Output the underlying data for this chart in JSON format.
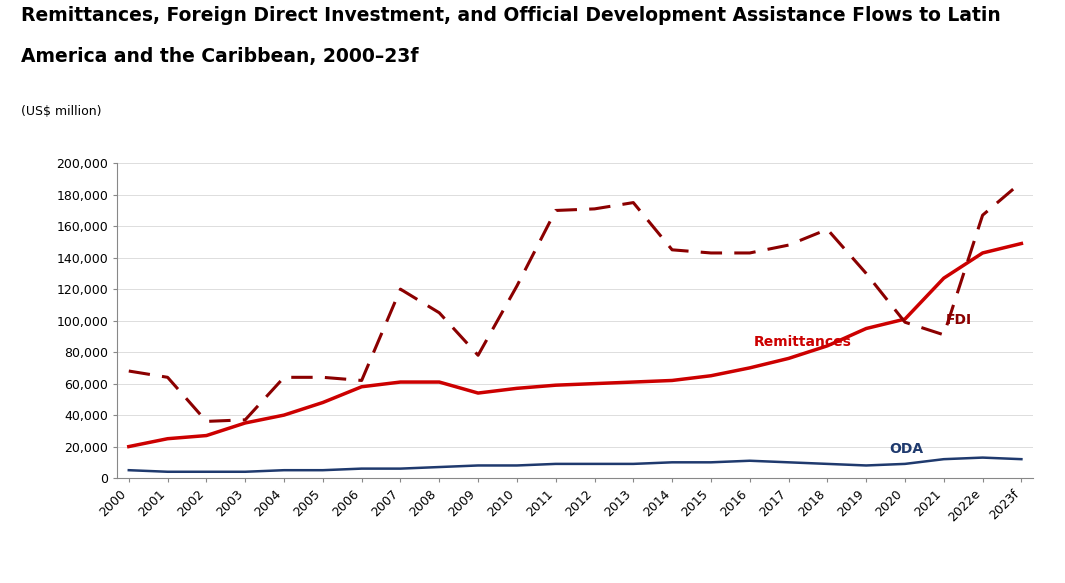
{
  "title_line1": "Remittances, Foreign Direct Investment, and Official Development Assistance Flows to Latin",
  "title_line2": "America and the Caribbean, 2000–23f",
  "unit_label": "(US$ million)",
  "years": [
    "2000",
    "2001",
    "2002",
    "2003",
    "2004",
    "2005",
    "2006",
    "2007",
    "2008",
    "2009",
    "2010",
    "2011",
    "2012",
    "2013",
    "2014",
    "2015",
    "2016",
    "2017",
    "2018",
    "2019",
    "2020",
    "2021",
    "2022e",
    "2023f"
  ],
  "remittances": [
    20000,
    25000,
    27000,
    35000,
    40000,
    48000,
    58000,
    61000,
    61000,
    54000,
    57000,
    59000,
    60000,
    61000,
    62000,
    65000,
    70000,
    76000,
    84000,
    95000,
    101000,
    127000,
    143000,
    149000
  ],
  "fdi": [
    68000,
    64000,
    36000,
    37000,
    64000,
    64000,
    62000,
    120000,
    105000,
    78000,
    122000,
    170000,
    171000,
    175000,
    145000,
    143000,
    143000,
    148000,
    158000,
    130000,
    99000,
    91000,
    167000,
    188000
  ],
  "oda": [
    5000,
    4000,
    4000,
    4000,
    5000,
    5000,
    6000,
    6000,
    7000,
    8000,
    8000,
    9000,
    9000,
    9000,
    10000,
    10000,
    11000,
    10000,
    9000,
    8000,
    9000,
    12000,
    13000,
    12000
  ],
  "remittances_color": "#CC0000",
  "fdi_color": "#8B0000",
  "oda_color": "#1F3A6E",
  "ylim": [
    0,
    200000
  ],
  "yticks": [
    0,
    20000,
    40000,
    60000,
    80000,
    100000,
    120000,
    140000,
    160000,
    180000,
    200000
  ],
  "background_color": "#ffffff",
  "title_fontsize": 13.5,
  "tick_fontsize": 9,
  "label_fontsize": 10
}
